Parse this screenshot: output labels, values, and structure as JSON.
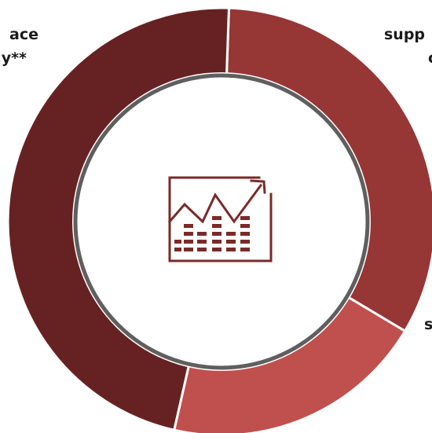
{
  "chart_data": {
    "type": "pie",
    "style": "donut",
    "categories": [
      "",
      "",
      ""
    ],
    "values": [
      33,
      20,
      47
    ],
    "colors": [
      "#963635",
      "#c0504d",
      "#662222"
    ],
    "labels": [
      {
        "line1": "supp",
        "line2": "c"
      },
      {
        "line1": "s",
        "line2": ""
      },
      {
        "line1": "ace",
        "line2": "y**"
      }
    ],
    "center_icon": "line-chart-with-bars-icon",
    "center_icon_color": "#7a2a28",
    "inner_ring_color": "#5f5f5f"
  }
}
